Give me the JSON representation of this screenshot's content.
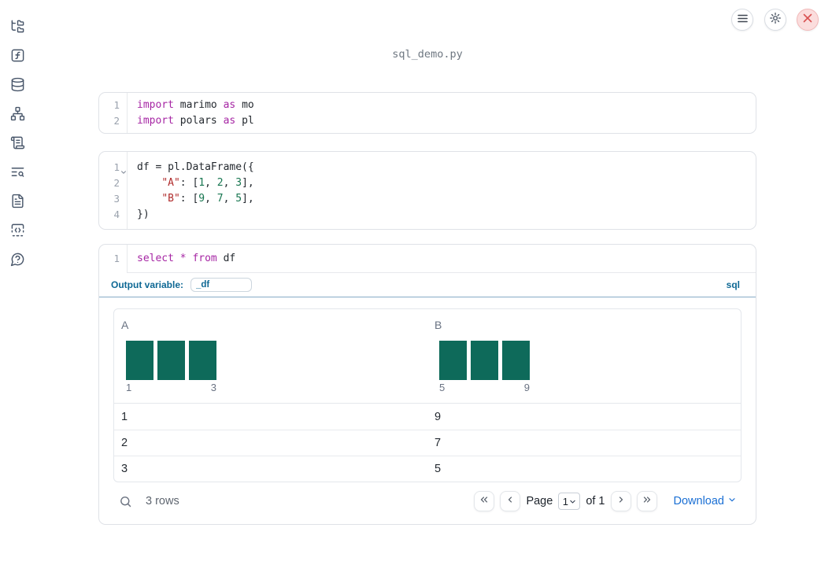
{
  "window": {
    "title": "sql_demo.py"
  },
  "topbar": {
    "menu_button": "menu",
    "settings_button": "settings",
    "shutdown_button": "shutdown"
  },
  "sidebar": {
    "items": [
      {
        "name": "file-explorer"
      },
      {
        "name": "variables"
      },
      {
        "name": "data-sources"
      },
      {
        "name": "dependencies"
      },
      {
        "name": "outputs"
      },
      {
        "name": "logs"
      },
      {
        "name": "documentation"
      },
      {
        "name": "snippets"
      },
      {
        "name": "help"
      }
    ]
  },
  "colors": {
    "histogram_bar": "#0e6a5a",
    "keyword": "#a626a4",
    "string": "#b02c2c",
    "number": "#177650",
    "sql_accent": "#0e6894",
    "download_link": "#1a6fd4",
    "close_button_bg": "#fbdddd",
    "close_button_icon": "#d95151"
  },
  "cells": [
    {
      "name": "imports-cell",
      "lines": [
        {
          "no": "1",
          "tokens": [
            {
              "t": "kw",
              "v": "import"
            },
            {
              "t": "pl",
              "v": " marimo "
            },
            {
              "t": "kw",
              "v": "as"
            },
            {
              "t": "pl",
              "v": " mo"
            }
          ]
        },
        {
          "no": "2",
          "tokens": [
            {
              "t": "kw",
              "v": "import"
            },
            {
              "t": "pl",
              "v": " polars "
            },
            {
              "t": "kw",
              "v": "as"
            },
            {
              "t": "pl",
              "v": " pl"
            }
          ]
        }
      ]
    },
    {
      "name": "dataframe-cell",
      "lines": [
        {
          "no": "1",
          "fold": true,
          "tokens": [
            {
              "t": "pl",
              "v": "df = pl.DataFrame({"
            }
          ]
        },
        {
          "no": "2",
          "tokens": [
            {
              "t": "pl",
              "v": "    "
            },
            {
              "t": "str",
              "v": "\"A\""
            },
            {
              "t": "pl",
              "v": ": ["
            },
            {
              "t": "num",
              "v": "1"
            },
            {
              "t": "pl",
              "v": ", "
            },
            {
              "t": "num",
              "v": "2"
            },
            {
              "t": "pl",
              "v": ", "
            },
            {
              "t": "num",
              "v": "3"
            },
            {
              "t": "pl",
              "v": "],"
            }
          ]
        },
        {
          "no": "3",
          "tokens": [
            {
              "t": "pl",
              "v": "    "
            },
            {
              "t": "str",
              "v": "\"B\""
            },
            {
              "t": "pl",
              "v": ": ["
            },
            {
              "t": "num",
              "v": "9"
            },
            {
              "t": "pl",
              "v": ", "
            },
            {
              "t": "num",
              "v": "7"
            },
            {
              "t": "pl",
              "v": ", "
            },
            {
              "t": "num",
              "v": "5"
            },
            {
              "t": "pl",
              "v": "],"
            }
          ]
        },
        {
          "no": "4",
          "tokens": [
            {
              "t": "pl",
              "v": "})"
            }
          ]
        }
      ]
    },
    {
      "name": "sql-cell",
      "lines": [
        {
          "no": "1",
          "tokens": [
            {
              "t": "kw",
              "v": "select"
            },
            {
              "t": "pl",
              "v": " "
            },
            {
              "t": "kw",
              "v": "*"
            },
            {
              "t": "pl",
              "v": " "
            },
            {
              "t": "kw",
              "v": "from"
            },
            {
              "t": "pl",
              "v": " df"
            }
          ]
        }
      ],
      "output_variable_label": "Output variable:",
      "output_variable_value": "_df",
      "language_badge": "sql"
    }
  ],
  "table": {
    "columns": [
      {
        "label": "A",
        "hist": {
          "values": [
            1,
            1,
            1
          ],
          "min_label": "1",
          "max_label": "3"
        }
      },
      {
        "label": "B",
        "hist": {
          "values": [
            1,
            1,
            1
          ],
          "min_label": "5",
          "max_label": "9"
        }
      }
    ],
    "rows": [
      [
        "1",
        "9"
      ],
      [
        "2",
        "7"
      ],
      [
        "3",
        "5"
      ]
    ]
  },
  "table_footer": {
    "row_count": "3 rows",
    "page_label": "Page",
    "page_value": "1",
    "page_total": "of 1",
    "download_label": "Download"
  }
}
